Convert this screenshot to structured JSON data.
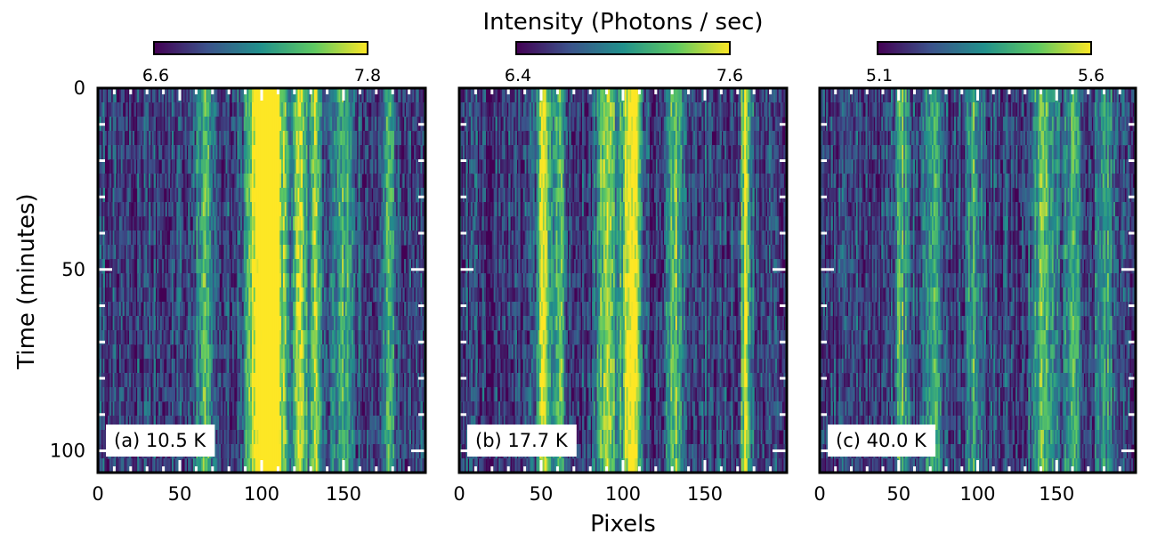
{
  "figure": {
    "colorbar_title": "Intensity (Photons / sec)",
    "ylabel": "Time (minutes)",
    "xlabel": "Pixels"
  },
  "colormap": [
    "#440154",
    "#3b528b",
    "#21918c",
    "#5ec962",
    "#fde725"
  ],
  "chart_data": [
    {
      "type": "heatmap",
      "label": "(a) 10.5 K",
      "clim": [
        6.6,
        7.8
      ],
      "clim_labels": [
        "6.6",
        "7.8"
      ],
      "xlim": [
        0,
        200
      ],
      "ylim": [
        106,
        0
      ],
      "xticks": [
        0,
        50,
        100,
        150
      ],
      "yticks": [
        0,
        50,
        100
      ],
      "bright_bands": [
        {
          "center": 98,
          "width": 8,
          "level": 0.9
        },
        {
          "center": 108,
          "width": 8,
          "level": 0.85
        },
        {
          "center": 123,
          "width": 4,
          "level": 0.7
        },
        {
          "center": 133,
          "width": 4,
          "level": 0.6
        },
        {
          "center": 65,
          "width": 6,
          "level": 0.5
        },
        {
          "center": 150,
          "width": 6,
          "level": 0.5
        },
        {
          "center": 178,
          "width": 4,
          "level": 0.5
        }
      ]
    },
    {
      "type": "heatmap",
      "label": "(b) 17.7 K",
      "clim": [
        6.4,
        7.6
      ],
      "clim_labels": [
        "6.4",
        "7.6"
      ],
      "xlim": [
        0,
        200
      ],
      "ylim": [
        106,
        0
      ],
      "xticks": [
        0,
        50,
        100,
        150
      ],
      "yticks": [
        0,
        50,
        100
      ],
      "bright_bands": [
        {
          "center": 52,
          "width": 4,
          "level": 0.85
        },
        {
          "center": 62,
          "width": 3,
          "level": 0.55
        },
        {
          "center": 90,
          "width": 6,
          "level": 0.7
        },
        {
          "center": 105,
          "width": 6,
          "level": 0.95
        },
        {
          "center": 132,
          "width": 5,
          "level": 0.55
        },
        {
          "center": 175,
          "width": 3,
          "level": 0.8
        }
      ]
    },
    {
      "type": "heatmap",
      "label": "(c) 40.0 K",
      "clim": [
        5.1,
        5.6
      ],
      "clim_labels": [
        "5.1",
        "5.6"
      ],
      "xlim": [
        0,
        200
      ],
      "ylim": [
        106,
        0
      ],
      "xticks": [
        0,
        50,
        100,
        150
      ],
      "yticks": [
        0,
        50,
        100
      ],
      "bright_bands": [
        {
          "center": 52,
          "width": 5,
          "level": 0.45
        },
        {
          "center": 72,
          "width": 5,
          "level": 0.45
        },
        {
          "center": 98,
          "width": 5,
          "level": 0.45
        },
        {
          "center": 142,
          "width": 8,
          "level": 0.5
        },
        {
          "center": 160,
          "width": 5,
          "level": 0.4
        },
        {
          "center": 180,
          "width": 5,
          "level": 0.4
        }
      ]
    }
  ]
}
